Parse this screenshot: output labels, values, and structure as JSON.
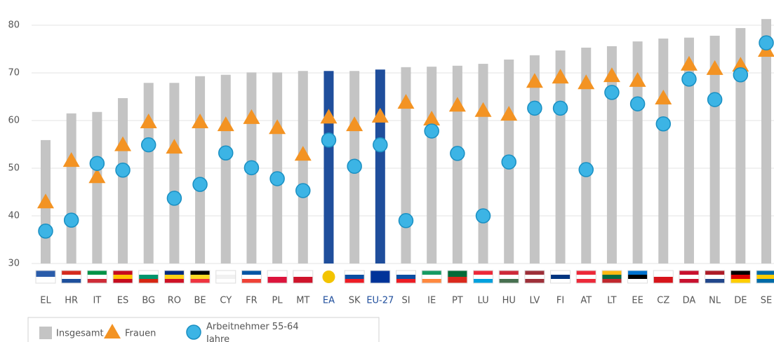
{
  "chart_data": {
    "type": "bar",
    "categories": [
      "EL",
      "HR",
      "IT",
      "ES",
      "BG",
      "RO",
      "BE",
      "CY",
      "FR",
      "PL",
      "MT",
      "EA",
      "SK",
      "EU-27",
      "SI",
      "IE",
      "PT",
      "LU",
      "HU",
      "LV",
      "FI",
      "AT",
      "LT",
      "EE",
      "CZ",
      "DA",
      "NL",
      "DE",
      "SE"
    ],
    "series": [
      {
        "name": "Insgesamt",
        "color": "#c4c4c4",
        "colors": [
          "#c4c4c4",
          "#c4c4c4",
          "#c4c4c4",
          "#c4c4c4",
          "#c4c4c4",
          "#c4c4c4",
          "#c4c4c4",
          "#c4c4c4",
          "#c4c4c4",
          "#c4c4c4",
          "#c4c4c4",
          "#1f4e9c",
          "#c4c4c4",
          "#1f4e9c",
          "#c4c4c4",
          "#c4c4c4",
          "#c4c4c4",
          "#c4c4c4",
          "#c4c4c4",
          "#c4c4c4",
          "#c4c4c4",
          "#c4c4c4",
          "#c4c4c4",
          "#c4c4c4",
          "#c4c4c4",
          "#c4c4c4",
          "#c4c4c4",
          "#c4c4c4",
          "#c4c4c4"
        ],
        "values": [
          55.9,
          61.5,
          61.8,
          64.7,
          67.9,
          67.9,
          69.3,
          69.6,
          70.1,
          70.1,
          70.4,
          70.4,
          70.4,
          70.7,
          71.2,
          71.3,
          71.5,
          71.9,
          72.8,
          73.7,
          74.7,
          75.3,
          75.6,
          76.6,
          77.2,
          77.4,
          77.8,
          79.4,
          81.3
        ]
      },
      {
        "name": "Frauen",
        "color": "#f39323",
        "marker": "triangle",
        "values": [
          42.9,
          51.6,
          48.2,
          54.9,
          59.7,
          54.4,
          59.7,
          59.1,
          60.6,
          58.5,
          52.9,
          60.7,
          59.1,
          60.9,
          63.8,
          60.3,
          63.2,
          62.1,
          61.3,
          68.2,
          69.1,
          67.9,
          69.4,
          68.4,
          64.7,
          71.8,
          70.9,
          71.6,
          74.7
        ]
      },
      {
        "name": "Arbeitnehmer 55-64 Jahre",
        "color": "#3cb4e5",
        "marker": "circle",
        "values": [
          36.8,
          39.1,
          51.0,
          49.6,
          54.9,
          43.7,
          46.6,
          53.2,
          50.1,
          47.8,
          45.3,
          55.9,
          50.4,
          54.9,
          39.0,
          57.8,
          53.1,
          40.0,
          51.3,
          62.6,
          62.6,
          49.7,
          65.9,
          63.5,
          59.3,
          68.7,
          64.4,
          69.6,
          76.3
        ]
      }
    ],
    "ylim": [
      30,
      80
    ],
    "yticks": [
      30,
      40,
      50,
      60,
      70,
      80
    ],
    "grid": true
  }
}
